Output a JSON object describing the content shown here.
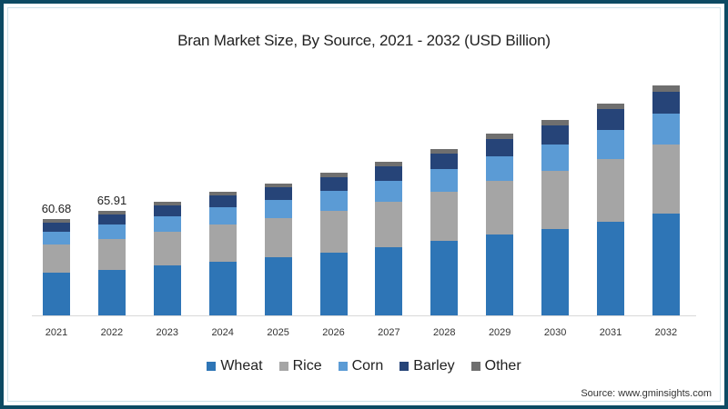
{
  "chart_data": {
    "type": "bar",
    "stacked": true,
    "title": "Bran Market Size, By Source, 2021 - 2032 (USD Billion)",
    "xlabel": "",
    "ylabel": "",
    "categories": [
      "2021",
      "2022",
      "2023",
      "2024",
      "2025",
      "2026",
      "2027",
      "2028",
      "2029",
      "2030",
      "2031",
      "2032"
    ],
    "series": [
      {
        "name": "Wheat",
        "color": "#2e75b6",
        "values": [
          26.9,
          28.6,
          31.5,
          33.8,
          36.6,
          39.5,
          42.9,
          46.9,
          50.9,
          54.4,
          59.0,
          64.1
        ]
      },
      {
        "name": "Rice",
        "color": "#a5a5a5",
        "values": [
          17.7,
          19.5,
          21.2,
          23.5,
          24.6,
          26.3,
          28.6,
          30.9,
          33.8,
          36.6,
          39.5,
          43.5
        ]
      },
      {
        "name": "Corn",
        "color": "#5b9bd5",
        "values": [
          8.0,
          9.2,
          9.7,
          10.9,
          11.4,
          12.6,
          13.2,
          14.3,
          15.5,
          16.6,
          18.3,
          19.5
        ]
      },
      {
        "name": "Barley",
        "color": "#264478",
        "values": [
          5.7,
          6.3,
          6.9,
          7.4,
          8.0,
          8.6,
          9.2,
          9.7,
          10.9,
          12.0,
          13.2,
          13.7
        ]
      },
      {
        "name": "Other",
        "color": "#6f6f6f",
        "values": [
          2.3,
          2.3,
          2.3,
          2.3,
          2.3,
          2.9,
          2.9,
          2.9,
          3.4,
          3.4,
          3.4,
          4.0
        ]
      }
    ],
    "totals_labeled": {
      "2021": "60.68",
      "2022": "65.91"
    },
    "grid": false,
    "legend_position": "bottom",
    "ylim": [
      0,
      150
    ]
  },
  "title": "Bran Market Size, By Source, 2021 - 2032 (USD Billion)",
  "legend": [
    {
      "label": "Wheat",
      "color": "#2e75b6"
    },
    {
      "label": "Rice",
      "color": "#a5a5a5"
    },
    {
      "label": "Corn",
      "color": "#5b9bd5"
    },
    {
      "label": "Barley",
      "color": "#264478"
    },
    {
      "label": "Other",
      "color": "#6f6f6f"
    }
  ],
  "labels": {
    "total_2021": "60.68",
    "total_2022": "65.91"
  },
  "source": "Source: www.gminsights.com",
  "frame_color": "#0d4a63"
}
